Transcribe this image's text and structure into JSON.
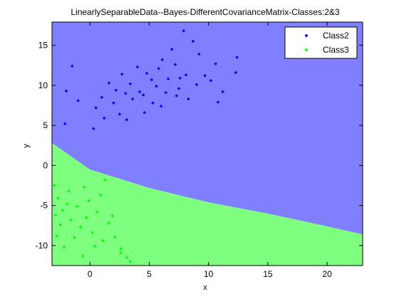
{
  "chart_data": {
    "type": "scatter",
    "title": "LinearlySeparableData--Bayes-DifferentCovarianceMatrix-Classes:2&3",
    "xlabel": "x",
    "ylabel": "y",
    "xlim": [
      -3.2,
      23.0
    ],
    "ylim": [
      -12.5,
      17.9
    ],
    "xticks": [
      0,
      5,
      10,
      15,
      20
    ],
    "yticks": [
      -10,
      -5,
      0,
      5,
      10,
      15
    ],
    "grid": false,
    "legend_position": "top-right",
    "regions": [
      {
        "class": "Class2",
        "color": "#7f7fff"
      },
      {
        "class": "Class3",
        "color": "#7fff7f"
      }
    ],
    "decision_boundary": {
      "x": [
        -3.2,
        0,
        5,
        10,
        15,
        20,
        23.0
      ],
      "y": [
        2.8,
        -0.5,
        -2.8,
        -4.6,
        -6.0,
        -7.6,
        -8.6
      ]
    },
    "series": [
      {
        "name": "Class2",
        "color": "#0000ff",
        "marker": "diamond",
        "points": [
          [
            -1.5,
            12.4
          ],
          [
            -2.0,
            9.3
          ],
          [
            -1.0,
            8.1
          ],
          [
            -2.1,
            5.2
          ],
          [
            0.3,
            4.6
          ],
          [
            1.2,
            5.9
          ],
          [
            0.5,
            7.2
          ],
          [
            1.0,
            8.5
          ],
          [
            2.0,
            7.8
          ],
          [
            2.2,
            9.4
          ],
          [
            2.5,
            6.4
          ],
          [
            3.1,
            5.7
          ],
          [
            3.6,
            8.3
          ],
          [
            4.2,
            9.2
          ],
          [
            4.8,
            11.5
          ],
          [
            5.3,
            7.8
          ],
          [
            5.6,
            9.9
          ],
          [
            6.1,
            13.2
          ],
          [
            6.6,
            10.8
          ],
          [
            7.2,
            12.6
          ],
          [
            7.5,
            9.6
          ],
          [
            8.1,
            11.3
          ],
          [
            8.7,
            15.5
          ],
          [
            9.2,
            13.9
          ],
          [
            9.7,
            11.2
          ],
          [
            10.2,
            10.6
          ],
          [
            10.6,
            12.7
          ],
          [
            11.2,
            9.2
          ],
          [
            12.3,
            11.6
          ],
          [
            12.4,
            13.5
          ],
          [
            3.4,
            10.2
          ],
          [
            4.5,
            8.8
          ],
          [
            5.2,
            10.7
          ],
          [
            6.4,
            9.1
          ],
          [
            7.3,
            8.7
          ],
          [
            6.9,
            14.5
          ],
          [
            7.9,
            16.8
          ],
          [
            2.7,
            11.4
          ],
          [
            8.3,
            8.3
          ],
          [
            4.0,
            12.3
          ],
          [
            5.8,
            12.1
          ],
          [
            6.0,
            7.4
          ],
          [
            3.0,
            9.0
          ],
          [
            9.0,
            10.1
          ],
          [
            1.6,
            10.3
          ],
          [
            4.6,
            6.6
          ],
          [
            10.8,
            7.9
          ],
          [
            7.6,
            10.9
          ]
        ]
      },
      {
        "name": "Class3",
        "color": "#00ff00",
        "marker": "diamond",
        "points": [
          [
            -3.0,
            -2.5
          ],
          [
            -2.7,
            -4.1
          ],
          [
            -2.3,
            -5.6
          ],
          [
            -2.9,
            -6.2
          ],
          [
            -1.8,
            -3.2
          ],
          [
            -1.6,
            -6.8
          ],
          [
            -1.1,
            -5.1
          ],
          [
            -0.8,
            -7.7
          ],
          [
            -0.3,
            -6.5
          ],
          [
            0.2,
            -8.4
          ],
          [
            0.6,
            -5.8
          ],
          [
            1.1,
            -9.4
          ],
          [
            1.6,
            -7.2
          ],
          [
            2.1,
            -8.9
          ],
          [
            2.6,
            -10.9
          ],
          [
            3.1,
            -11.5
          ],
          [
            -2.2,
            -10.2
          ],
          [
            -0.6,
            -11.3
          ],
          [
            -1.3,
            -9.0
          ],
          [
            0.9,
            -3.7
          ],
          [
            -2.5,
            -7.4
          ],
          [
            -0.1,
            -4.4
          ],
          [
            1.3,
            -1.8
          ],
          [
            2.6,
            -10.4
          ],
          [
            -2.8,
            -8.8
          ],
          [
            -1.9,
            -4.8
          ],
          [
            -0.5,
            -2.7
          ],
          [
            0.4,
            -10.1
          ],
          [
            1.9,
            -6.3
          ],
          [
            3.4,
            -12.0
          ]
        ]
      }
    ]
  }
}
